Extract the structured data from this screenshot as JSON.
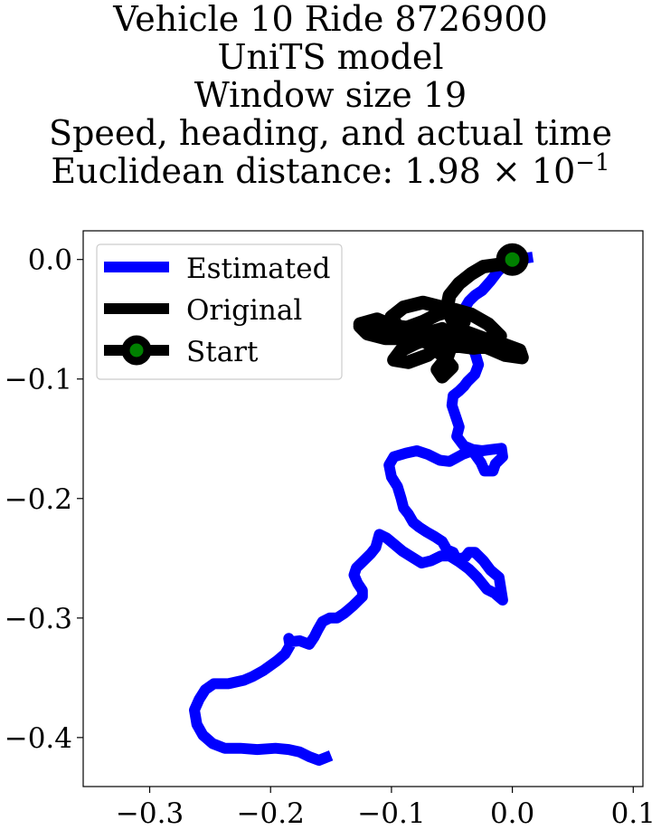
{
  "chart_data": {
    "type": "line",
    "title_lines": [
      "Vehicle 10 Ride 8726900",
      "UniTS model",
      "Window size 19",
      "Speed, heading, and actual time"
    ],
    "title_metric_prefix": "Euclidean distance: 1.98",
    "title_metric_times": "×",
    "title_metric_base": "10",
    "title_metric_exponent": "−1",
    "xlim": [
      -0.355,
      0.108
    ],
    "ylim": [
      -0.441,
      0.024
    ],
    "x_ticks": [
      -0.3,
      -0.2,
      -0.1,
      0.0,
      0.1
    ],
    "x_tick_labels": [
      "−0.3",
      "−0.2",
      "−0.1",
      "0.0",
      "0.1"
    ],
    "y_ticks": [
      0.0,
      -0.1,
      -0.2,
      -0.3,
      -0.4
    ],
    "y_tick_labels": [
      "0.0",
      "−0.1",
      "−0.2",
      "−0.3",
      "−0.4"
    ],
    "legend_position": "upper-left",
    "series": [
      {
        "name": "Estimated",
        "color": "#0000ff",
        "x": [
          0.017,
          0.01,
          0.002,
          -0.006,
          -0.012,
          -0.018,
          -0.025,
          -0.031,
          -0.036,
          -0.04,
          -0.044,
          -0.042,
          -0.037,
          -0.031,
          -0.028,
          -0.031,
          -0.037,
          -0.04,
          -0.044,
          -0.049,
          -0.05,
          -0.047,
          -0.044,
          -0.046,
          -0.04,
          -0.033,
          -0.025,
          -0.017,
          -0.009,
          -0.008,
          -0.014,
          -0.016,
          -0.023,
          -0.026,
          -0.033,
          -0.041,
          -0.052,
          -0.06,
          -0.07,
          -0.079,
          -0.088,
          -0.098,
          -0.102,
          -0.1,
          -0.095,
          -0.092,
          -0.09,
          -0.086,
          -0.082,
          -0.077,
          -0.071,
          -0.064,
          -0.058,
          -0.054,
          -0.049,
          -0.046,
          -0.039,
          -0.036,
          -0.031,
          -0.024,
          -0.018,
          -0.011,
          -0.008,
          -0.015,
          -0.021,
          -0.029,
          -0.036,
          -0.044,
          -0.052,
          -0.059,
          -0.067,
          -0.075,
          -0.083,
          -0.091,
          -0.098,
          -0.104,
          -0.11,
          -0.113,
          -0.117,
          -0.12,
          -0.125,
          -0.129,
          -0.131,
          -0.128,
          -0.124,
          -0.124,
          -0.127,
          -0.132,
          -0.139,
          -0.145,
          -0.151,
          -0.157,
          -0.161,
          -0.164,
          -0.168,
          -0.176,
          -0.184,
          -0.185,
          -0.184,
          -0.188,
          -0.195,
          -0.206,
          -0.215,
          -0.222,
          -0.235,
          -0.247,
          -0.254,
          -0.259,
          -0.263,
          -0.261,
          -0.256,
          -0.248,
          -0.238,
          -0.225,
          -0.211,
          -0.196,
          -0.185,
          -0.176,
          -0.168,
          -0.16,
          -0.15
        ],
        "y": [
          0.002,
          0.001,
          -0.001,
          -0.004,
          -0.01,
          -0.018,
          -0.026,
          -0.03,
          -0.035,
          -0.042,
          -0.05,
          -0.059,
          -0.069,
          -0.078,
          -0.088,
          -0.096,
          -0.102,
          -0.106,
          -0.11,
          -0.114,
          -0.122,
          -0.131,
          -0.14,
          -0.148,
          -0.156,
          -0.159,
          -0.16,
          -0.159,
          -0.158,
          -0.165,
          -0.171,
          -0.177,
          -0.177,
          -0.17,
          -0.16,
          -0.163,
          -0.169,
          -0.168,
          -0.163,
          -0.16,
          -0.162,
          -0.165,
          -0.172,
          -0.182,
          -0.19,
          -0.2,
          -0.208,
          -0.213,
          -0.22,
          -0.224,
          -0.228,
          -0.232,
          -0.236,
          -0.243,
          -0.245,
          -0.251,
          -0.249,
          -0.245,
          -0.245,
          -0.252,
          -0.26,
          -0.266,
          -0.285,
          -0.279,
          -0.276,
          -0.266,
          -0.259,
          -0.253,
          -0.248,
          -0.248,
          -0.252,
          -0.254,
          -0.249,
          -0.244,
          -0.238,
          -0.233,
          -0.23,
          -0.241,
          -0.246,
          -0.249,
          -0.254,
          -0.258,
          -0.264,
          -0.271,
          -0.277,
          -0.282,
          -0.285,
          -0.29,
          -0.296,
          -0.3,
          -0.3,
          -0.303,
          -0.31,
          -0.316,
          -0.322,
          -0.319,
          -0.32,
          -0.317,
          -0.323,
          -0.33,
          -0.336,
          -0.344,
          -0.349,
          -0.352,
          -0.355,
          -0.355,
          -0.36,
          -0.368,
          -0.377,
          -0.389,
          -0.398,
          -0.405,
          -0.409,
          -0.409,
          -0.41,
          -0.409,
          -0.41,
          -0.412,
          -0.416,
          -0.419,
          -0.415
        ]
      },
      {
        "name": "Original",
        "color": "#000000",
        "x": [
          0.0,
          -0.01,
          -0.024,
          -0.034,
          -0.044,
          -0.052,
          -0.054,
          -0.05,
          -0.04,
          -0.024,
          -0.01,
          0.006,
          0.008,
          -0.006,
          -0.02,
          -0.038,
          -0.058,
          -0.08,
          -0.102,
          -0.118,
          -0.126,
          -0.12,
          -0.105,
          -0.088,
          -0.072,
          -0.058,
          -0.05,
          -0.054,
          -0.062,
          -0.058,
          -0.05,
          -0.058,
          -0.07,
          -0.084,
          -0.098,
          -0.112,
          -0.126,
          -0.122,
          -0.108,
          -0.09,
          -0.074,
          -0.062,
          -0.048,
          -0.034,
          -0.02,
          -0.01,
          -0.018,
          -0.032,
          -0.048,
          -0.066,
          -0.08,
          -0.094,
          -0.1,
          -0.09,
          -0.074,
          -0.058,
          -0.046,
          -0.04,
          -0.05,
          -0.064,
          -0.08,
          -0.092,
          -0.098,
          -0.086,
          -0.07,
          -0.058,
          -0.054
        ],
        "y": [
          0.0,
          -0.004,
          -0.006,
          -0.012,
          -0.02,
          -0.03,
          -0.04,
          -0.05,
          -0.06,
          -0.066,
          -0.07,
          -0.076,
          -0.082,
          -0.08,
          -0.074,
          -0.068,
          -0.062,
          -0.058,
          -0.055,
          -0.052,
          -0.056,
          -0.062,
          -0.066,
          -0.066,
          -0.062,
          -0.058,
          -0.07,
          -0.082,
          -0.092,
          -0.098,
          -0.09,
          -0.08,
          -0.07,
          -0.062,
          -0.056,
          -0.05,
          -0.054,
          -0.06,
          -0.062,
          -0.058,
          -0.052,
          -0.046,
          -0.042,
          -0.046,
          -0.054,
          -0.064,
          -0.072,
          -0.074,
          -0.072,
          -0.068,
          -0.064,
          -0.058,
          -0.048,
          -0.04,
          -0.036,
          -0.04,
          -0.046,
          -0.052,
          -0.058,
          -0.064,
          -0.07,
          -0.076,
          -0.084,
          -0.086,
          -0.08,
          -0.07,
          -0.06
        ]
      }
    ],
    "start_point": {
      "name": "Start",
      "x": 0.0,
      "y": 0.0,
      "marker_edge_color": "#000000",
      "marker_face_color": "#008000"
    }
  }
}
